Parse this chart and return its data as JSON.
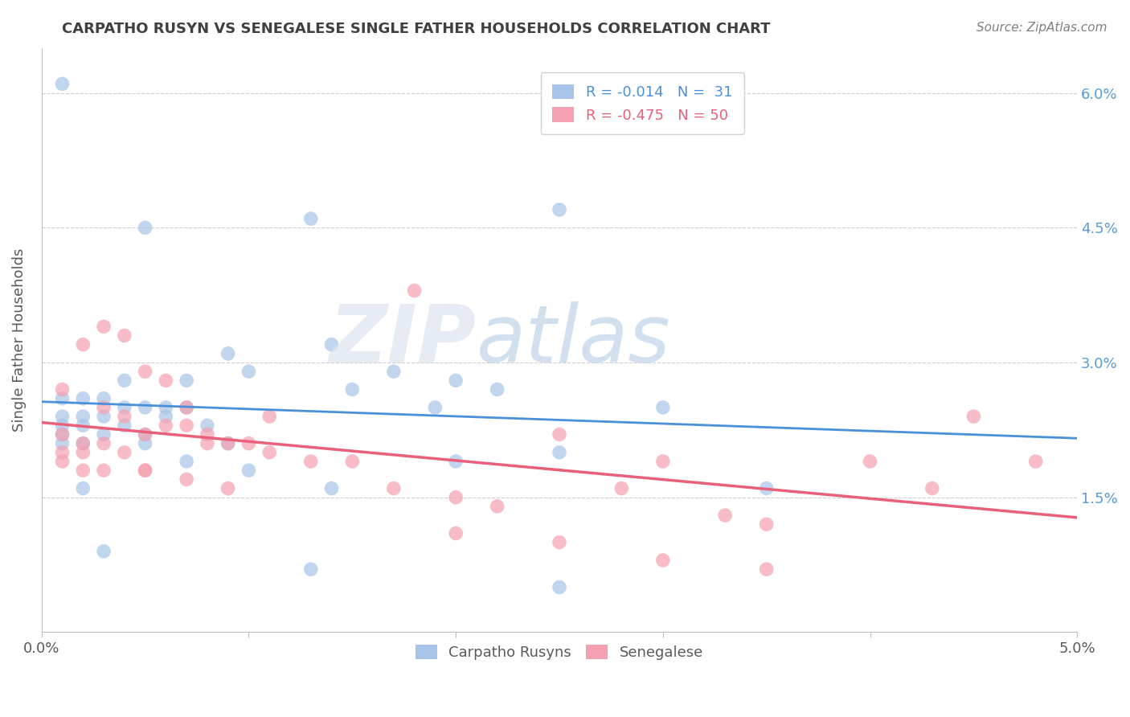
{
  "title": "CARPATHO RUSYN VS SENEGALESE SINGLE FATHER HOUSEHOLDS CORRELATION CHART",
  "source": "Source: ZipAtlas.com",
  "ylabel": "Single Father Households",
  "xlim": [
    0.0,
    0.05
  ],
  "ylim": [
    0.0,
    0.065
  ],
  "xticks": [
    0.0,
    0.01,
    0.02,
    0.03,
    0.04,
    0.05
  ],
  "xtick_labels": [
    "0.0%",
    "",
    "",
    "",
    "",
    "5.0%"
  ],
  "ytick_positions": [
    0.0,
    0.015,
    0.03,
    0.045,
    0.06
  ],
  "ytick_labels": [
    "",
    "1.5%",
    "3.0%",
    "4.5%",
    "6.0%"
  ],
  "carpatho_color": "#a8c4e8",
  "senegalese_color": "#f4a0b0",
  "carpatho_line_color": "#4a90d9",
  "senegalese_line_color": "#e8607a",
  "carpatho_points": [
    [
      0.001,
      0.061
    ],
    [
      0.005,
      0.045
    ],
    [
      0.009,
      0.031
    ],
    [
      0.014,
      0.032
    ],
    [
      0.004,
      0.028
    ],
    [
      0.007,
      0.028
    ],
    [
      0.01,
      0.029
    ],
    [
      0.001,
      0.026
    ],
    [
      0.002,
      0.026
    ],
    [
      0.003,
      0.026
    ],
    [
      0.004,
      0.025
    ],
    [
      0.005,
      0.025
    ],
    [
      0.006,
      0.025
    ],
    [
      0.007,
      0.025
    ],
    [
      0.001,
      0.024
    ],
    [
      0.002,
      0.024
    ],
    [
      0.003,
      0.024
    ],
    [
      0.006,
      0.024
    ],
    [
      0.001,
      0.023
    ],
    [
      0.002,
      0.023
    ],
    [
      0.004,
      0.023
    ],
    [
      0.008,
      0.023
    ],
    [
      0.001,
      0.022
    ],
    [
      0.003,
      0.022
    ],
    [
      0.005,
      0.022
    ],
    [
      0.001,
      0.021
    ],
    [
      0.002,
      0.021
    ],
    [
      0.005,
      0.021
    ],
    [
      0.009,
      0.021
    ],
    [
      0.002,
      0.016
    ],
    [
      0.013,
      0.046
    ],
    [
      0.017,
      0.029
    ],
    [
      0.019,
      0.025
    ],
    [
      0.022,
      0.027
    ],
    [
      0.025,
      0.047
    ],
    [
      0.007,
      0.019
    ],
    [
      0.01,
      0.018
    ],
    [
      0.014,
      0.016
    ],
    [
      0.02,
      0.019
    ],
    [
      0.025,
      0.02
    ],
    [
      0.015,
      0.027
    ],
    [
      0.02,
      0.028
    ],
    [
      0.03,
      0.025
    ],
    [
      0.035,
      0.016
    ],
    [
      0.003,
      0.009
    ],
    [
      0.013,
      0.007
    ],
    [
      0.025,
      0.005
    ]
  ],
  "senegalese_points": [
    [
      0.001,
      0.027
    ],
    [
      0.002,
      0.032
    ],
    [
      0.003,
      0.034
    ],
    [
      0.004,
      0.033
    ],
    [
      0.005,
      0.029
    ],
    [
      0.006,
      0.028
    ],
    [
      0.001,
      0.022
    ],
    [
      0.002,
      0.021
    ],
    [
      0.003,
      0.025
    ],
    [
      0.004,
      0.024
    ],
    [
      0.005,
      0.022
    ],
    [
      0.006,
      0.023
    ],
    [
      0.007,
      0.023
    ],
    [
      0.008,
      0.021
    ],
    [
      0.001,
      0.02
    ],
    [
      0.002,
      0.02
    ],
    [
      0.003,
      0.021
    ],
    [
      0.004,
      0.02
    ],
    [
      0.005,
      0.018
    ],
    [
      0.007,
      0.025
    ],
    [
      0.008,
      0.022
    ],
    [
      0.009,
      0.021
    ],
    [
      0.01,
      0.021
    ],
    [
      0.011,
      0.02
    ],
    [
      0.001,
      0.019
    ],
    [
      0.002,
      0.018
    ],
    [
      0.003,
      0.018
    ],
    [
      0.005,
      0.018
    ],
    [
      0.007,
      0.017
    ],
    [
      0.009,
      0.016
    ],
    [
      0.011,
      0.024
    ],
    [
      0.013,
      0.019
    ],
    [
      0.015,
      0.019
    ],
    [
      0.017,
      0.016
    ],
    [
      0.018,
      0.038
    ],
    [
      0.02,
      0.015
    ],
    [
      0.022,
      0.014
    ],
    [
      0.025,
      0.022
    ],
    [
      0.028,
      0.016
    ],
    [
      0.03,
      0.019
    ],
    [
      0.033,
      0.013
    ],
    [
      0.035,
      0.012
    ],
    [
      0.04,
      0.019
    ],
    [
      0.043,
      0.016
    ],
    [
      0.045,
      0.024
    ],
    [
      0.02,
      0.011
    ],
    [
      0.025,
      0.01
    ],
    [
      0.03,
      0.008
    ],
    [
      0.035,
      0.007
    ],
    [
      0.048,
      0.019
    ]
  ]
}
